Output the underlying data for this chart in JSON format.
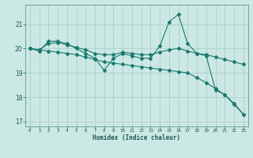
{
  "xlabel": "Humidex (Indice chaleur)",
  "bg_color": "#cce8e4",
  "grid_color": "#aad0cc",
  "line_color": "#1a7a6e",
  "tick_color": "#1a5a54",
  "series1": {
    "x": [
      0,
      1,
      2,
      3,
      4,
      5,
      6,
      7,
      8,
      9,
      10,
      11,
      12,
      13,
      14,
      15,
      16,
      17,
      18,
      19,
      20,
      21,
      22,
      23
    ],
    "y": [
      20.0,
      19.9,
      20.3,
      20.3,
      20.2,
      20.0,
      19.8,
      19.6,
      19.1,
      19.6,
      19.8,
      19.7,
      19.6,
      19.6,
      20.1,
      21.1,
      21.4,
      20.2,
      19.8,
      19.7,
      18.3,
      18.1,
      17.7,
      17.3
    ]
  },
  "series2": {
    "x": [
      0,
      1,
      2,
      3,
      4,
      5,
      6,
      7,
      8,
      9,
      10,
      11,
      12,
      13,
      14,
      15,
      16,
      17,
      18,
      19,
      20,
      21,
      22,
      23
    ],
    "y": [
      20.0,
      19.95,
      20.2,
      20.25,
      20.15,
      20.05,
      19.95,
      19.8,
      19.75,
      19.75,
      19.85,
      19.8,
      19.75,
      19.75,
      19.85,
      19.95,
      20.0,
      19.9,
      19.8,
      19.75,
      19.65,
      19.55,
      19.45,
      19.35
    ]
  },
  "series3": {
    "x": [
      0,
      1,
      2,
      3,
      4,
      5,
      6,
      7,
      8,
      9,
      10,
      11,
      12,
      13,
      14,
      15,
      16,
      17,
      18,
      19,
      20,
      21,
      22,
      23
    ],
    "y": [
      20.0,
      19.95,
      19.9,
      19.85,
      19.8,
      19.75,
      19.65,
      19.55,
      19.45,
      19.4,
      19.35,
      19.3,
      19.25,
      19.2,
      19.15,
      19.1,
      19.05,
      19.0,
      18.8,
      18.6,
      18.35,
      18.1,
      17.75,
      17.3
    ]
  },
  "ylim": [
    16.8,
    21.8
  ],
  "yticks": [
    17,
    18,
    19,
    20,
    21
  ],
  "xlim": [
    -0.5,
    23.5
  ],
  "xticks": [
    0,
    1,
    2,
    3,
    4,
    5,
    6,
    7,
    8,
    9,
    10,
    11,
    12,
    13,
    14,
    15,
    16,
    17,
    18,
    19,
    20,
    21,
    22,
    23
  ]
}
